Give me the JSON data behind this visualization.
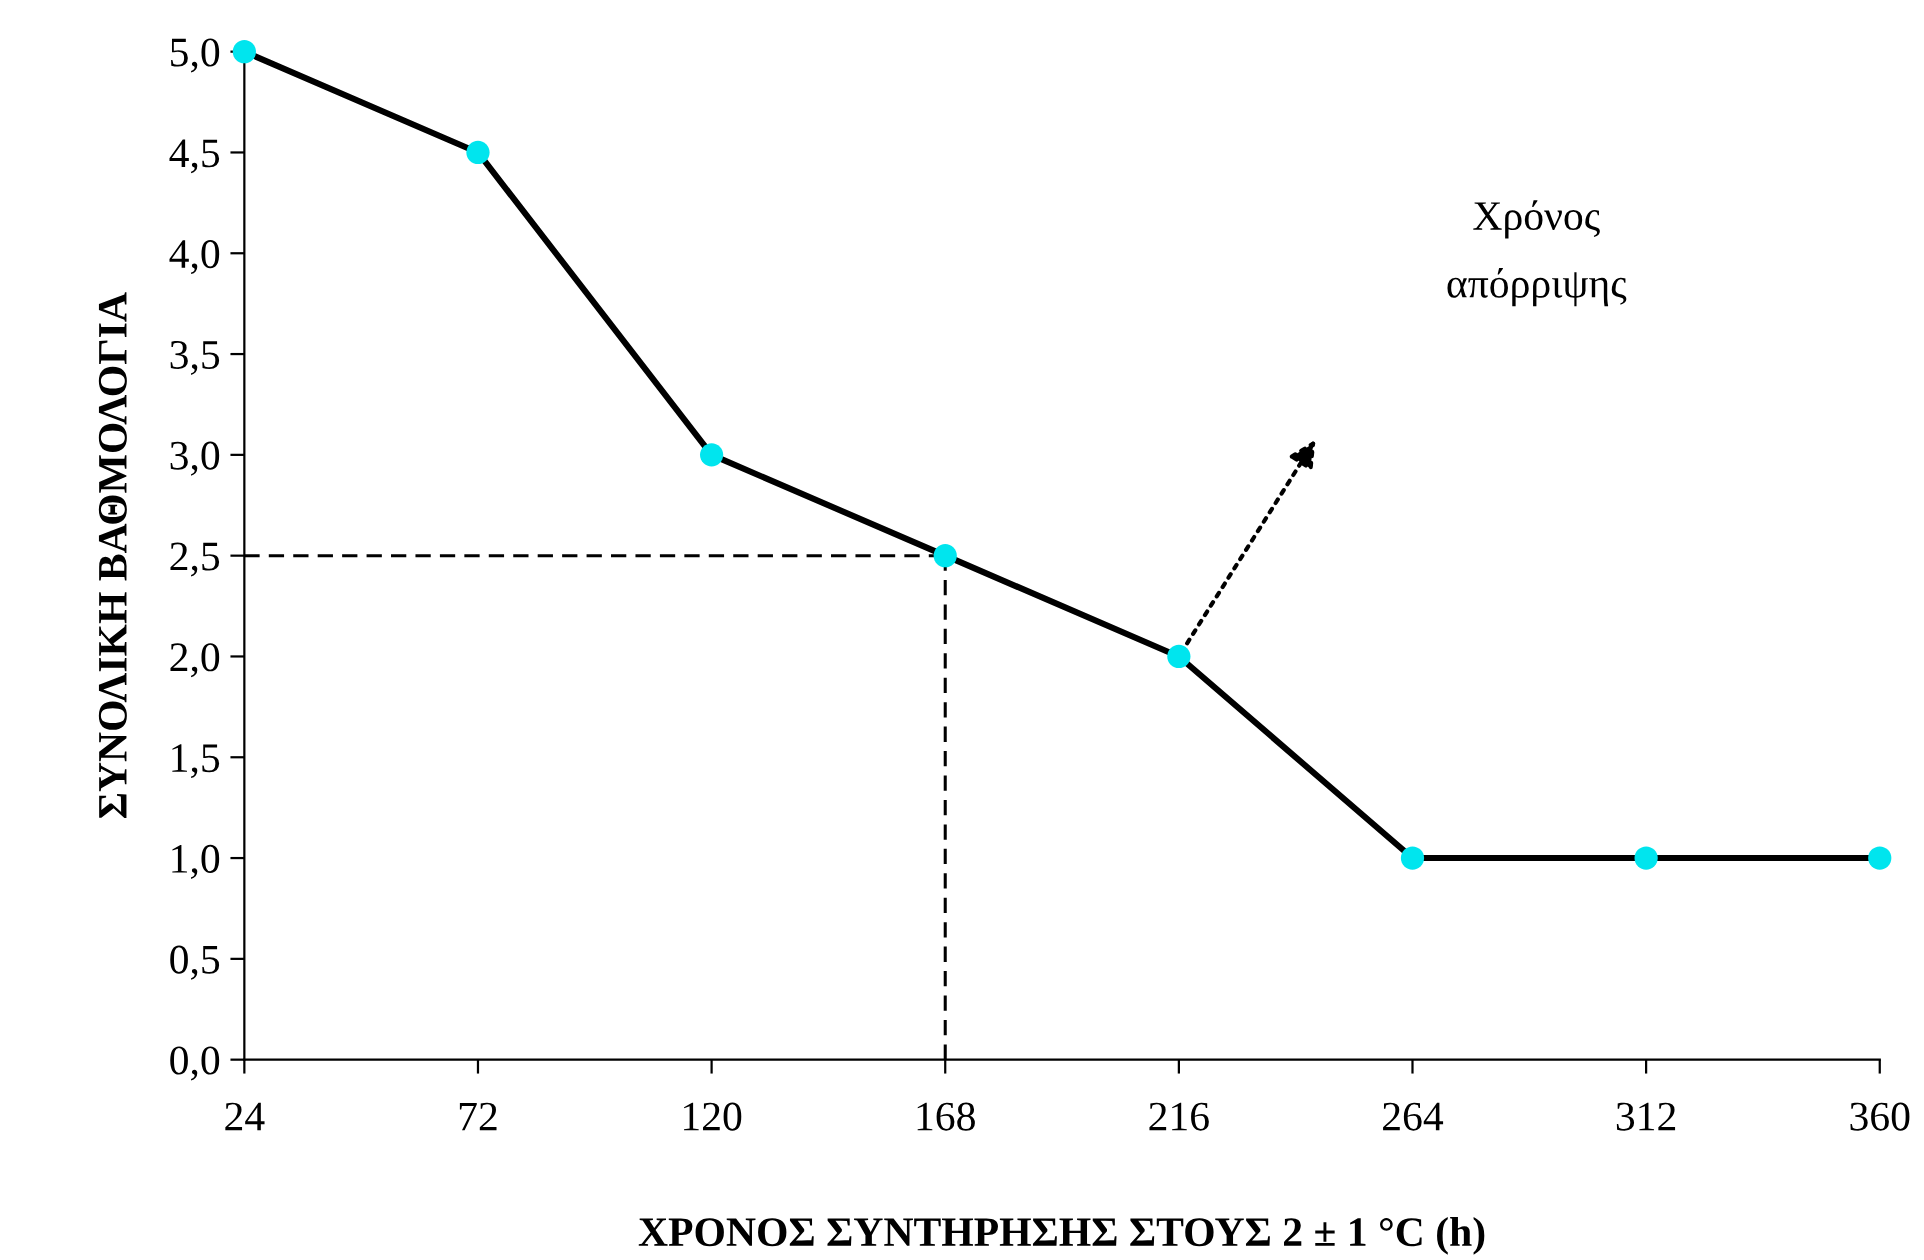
{
  "chart_data": {
    "type": "line",
    "xlabel": "ΧΡΟΝΟΣ ΣΥΝΤΗΡΗΣΗΣ ΣΤΟΥΣ 2 ± 1 °C (h)",
    "ylabel": "ΣΥΝΟΛΙΚΗ ΒΑΘΜΟΛΟΓΙΑ",
    "xlim": [
      24,
      360
    ],
    "xticks": [
      24,
      72,
      120,
      168,
      216,
      264,
      312,
      360
    ],
    "ylim": [
      0,
      5
    ],
    "yticks": [
      {
        "value": 0,
        "label": "0,0"
      },
      {
        "value": 0.5,
        "label": "0,5"
      },
      {
        "value": 1,
        "label": "1,0"
      },
      {
        "value": 1.5,
        "label": "1,5"
      },
      {
        "value": 2,
        "label": "2,0"
      },
      {
        "value": 2.5,
        "label": "2,5"
      },
      {
        "value": 3,
        "label": "3,0"
      },
      {
        "value": 3.5,
        "label": "3,5"
      },
      {
        "value": 4,
        "label": "4,0"
      },
      {
        "value": 4.5,
        "label": "4,5"
      },
      {
        "value": 5,
        "label": "5,0"
      }
    ],
    "grid": false,
    "legend": false,
    "series": [
      {
        "x": [
          24,
          72,
          120,
          168,
          216,
          264,
          312,
          360
        ],
        "values": [
          5,
          4.5,
          3,
          2.5,
          2,
          1,
          1,
          1
        ],
        "color": "#000000",
        "colors": [
          "#00e5ee",
          "#00e5ee",
          "#00e5ee",
          "#00e5ee",
          "#00e5ee",
          "#00e5ee",
          "#00e5ee",
          "#00e5ee"
        ],
        "marker": "circle",
        "line_style": "solid"
      },
      {
        "x": [
          24,
          168
        ],
        "values": [
          2.5,
          2.5
        ],
        "color": "#000000",
        "marker": "none",
        "line_style": "dashed"
      },
      {
        "x": [
          168,
          168
        ],
        "values": [
          0,
          2.5
        ],
        "color": "#000000",
        "marker": "none",
        "line_style": "dashed"
      }
    ],
    "annotations": [
      "Χρόνος\nαπόρριψης"
    ]
  }
}
